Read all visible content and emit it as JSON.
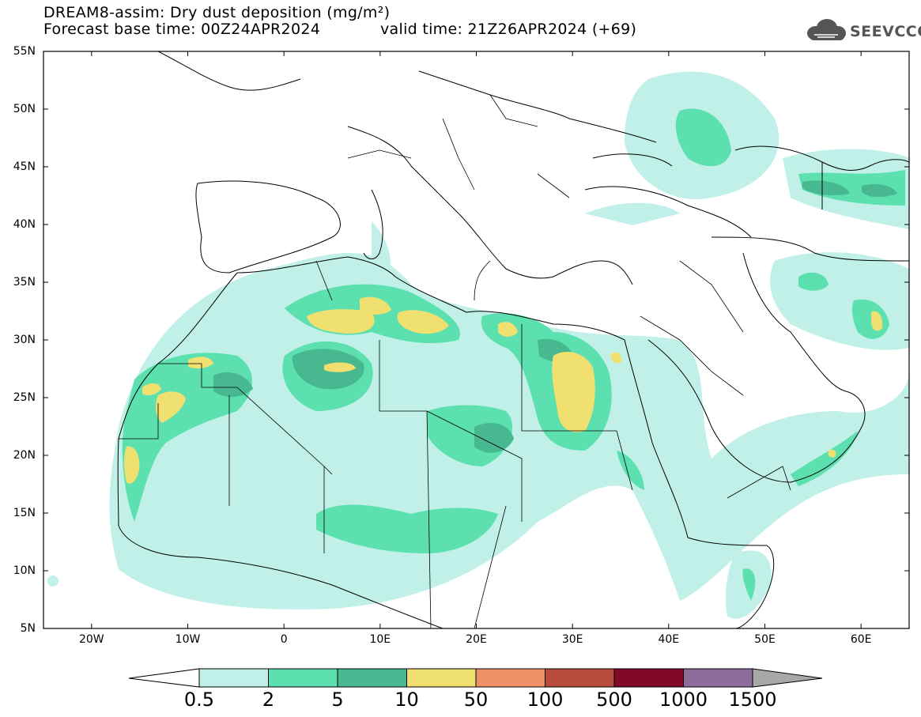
{
  "title": {
    "line1": "DREAM8-assim: Dry dust deposition (mg/m²)",
    "line2": "Forecast base time: 00Z24APR2024",
    "valid": "valid time: 21Z26APR2024 (+69)"
  },
  "logo": {
    "text": "SEEVCCC",
    "icon": "cloud-logo-icon"
  },
  "axes": {
    "lat_labels": [
      "55N",
      "50N",
      "45N",
      "40N",
      "35N",
      "30N",
      "25N",
      "20N",
      "15N",
      "10N",
      "5N"
    ],
    "lon_labels": [
      "20W",
      "10W",
      "0",
      "10E",
      "20E",
      "30E",
      "40E",
      "50E",
      "60E"
    ],
    "lon_range": [
      -25,
      65
    ],
    "lat_range": [
      5,
      55
    ]
  },
  "colorbar": {
    "labels": [
      "0.5",
      "2",
      "5",
      "10",
      "50",
      "100",
      "500",
      "1000",
      "1500"
    ],
    "colors": [
      "#c0f0e8",
      "#5ce0b0",
      "#48b890",
      "#f0e070",
      "#ee9068",
      "#b84c3c",
      "#800a28",
      "#8e6c9c"
    ],
    "extend_low_color": "#ffffff",
    "extend_high_color": "#a8a8a8"
  },
  "colors": {
    "land_frame": "#000000",
    "background": "#ffffff"
  }
}
